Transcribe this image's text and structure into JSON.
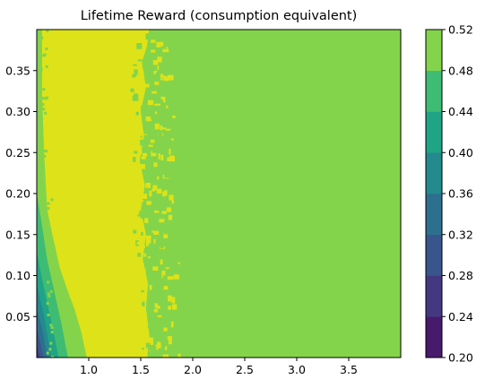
{
  "chart_data": {
    "type": "heatmap",
    "subtype": "filled-contour",
    "title": "Lifetime Reward (consumption equivalent)",
    "xlabel": "",
    "ylabel": "",
    "xlim": [
      0.5,
      4.0
    ],
    "ylim": [
      0.0,
      0.4
    ],
    "x_ticks": [
      1.0,
      1.5,
      2.0,
      2.5,
      3.0,
      3.5
    ],
    "x_tick_labels": [
      "1.0",
      "1.5",
      "2.0",
      "2.5",
      "3.0",
      "3.5"
    ],
    "y_ticks": [
      0.05,
      0.1,
      0.15,
      0.2,
      0.25,
      0.3,
      0.35
    ],
    "y_tick_labels": [
      "0.05",
      "0.10",
      "0.15",
      "0.20",
      "0.25",
      "0.30",
      "0.35"
    ],
    "grid": false,
    "colormap": "viridis",
    "colorbar": {
      "levels": [
        0.2,
        0.24,
        0.28,
        0.32,
        0.36,
        0.4,
        0.44,
        0.48,
        0.52
      ],
      "tick_labels": [
        "0.20",
        "0.24",
        "0.28",
        "0.32",
        "0.36",
        "0.40",
        "0.44",
        "0.48",
        "0.52"
      ],
      "colors": [
        "#481a6c",
        "#453882",
        "#39568c",
        "#2d708e",
        "#238a8d",
        "#20a486",
        "#3fbc73",
        "#84d44b",
        "#dde318"
      ]
    },
    "regions": [
      {
        "band": [
          0.48,
          0.52
        ],
        "boundary": [
          [
            0.55,
            0.4
          ],
          [
            0.55,
            0.325
          ],
          [
            0.6,
            0.18
          ],
          [
            0.72,
            0.11
          ],
          [
            0.86,
            0.06
          ],
          [
            0.98,
            0.0
          ],
          [
            1.55,
            0.0
          ],
          [
            1.5,
            0.1
          ],
          [
            1.55,
            0.2
          ],
          [
            1.5,
            0.3
          ],
          [
            1.55,
            0.4
          ]
        ]
      },
      {
        "band": [
          0.44,
          0.48
        ],
        "boundary": [
          [
            0.5,
            0.2
          ],
          [
            0.6,
            0.12
          ],
          [
            0.76,
            0.05
          ],
          [
            0.85,
            0.0
          ]
        ]
      },
      {
        "band": [
          0.4,
          0.44
        ],
        "boundary": [
          [
            0.5,
            0.16
          ],
          [
            0.6,
            0.08
          ],
          [
            0.72,
            0.0
          ]
        ]
      },
      {
        "band": [
          0.36,
          0.4
        ],
        "boundary": [
          [
            0.5,
            0.09
          ],
          [
            0.63,
            0.0
          ]
        ]
      },
      {
        "band": [
          0.32,
          0.36
        ],
        "boundary": [
          [
            0.5,
            0.06
          ],
          [
            0.58,
            0.0
          ]
        ]
      },
      {
        "band": [
          0.28,
          0.32
        ],
        "boundary": [
          [
            0.5,
            0.04
          ],
          [
            0.55,
            0.0
          ]
        ]
      }
    ]
  }
}
